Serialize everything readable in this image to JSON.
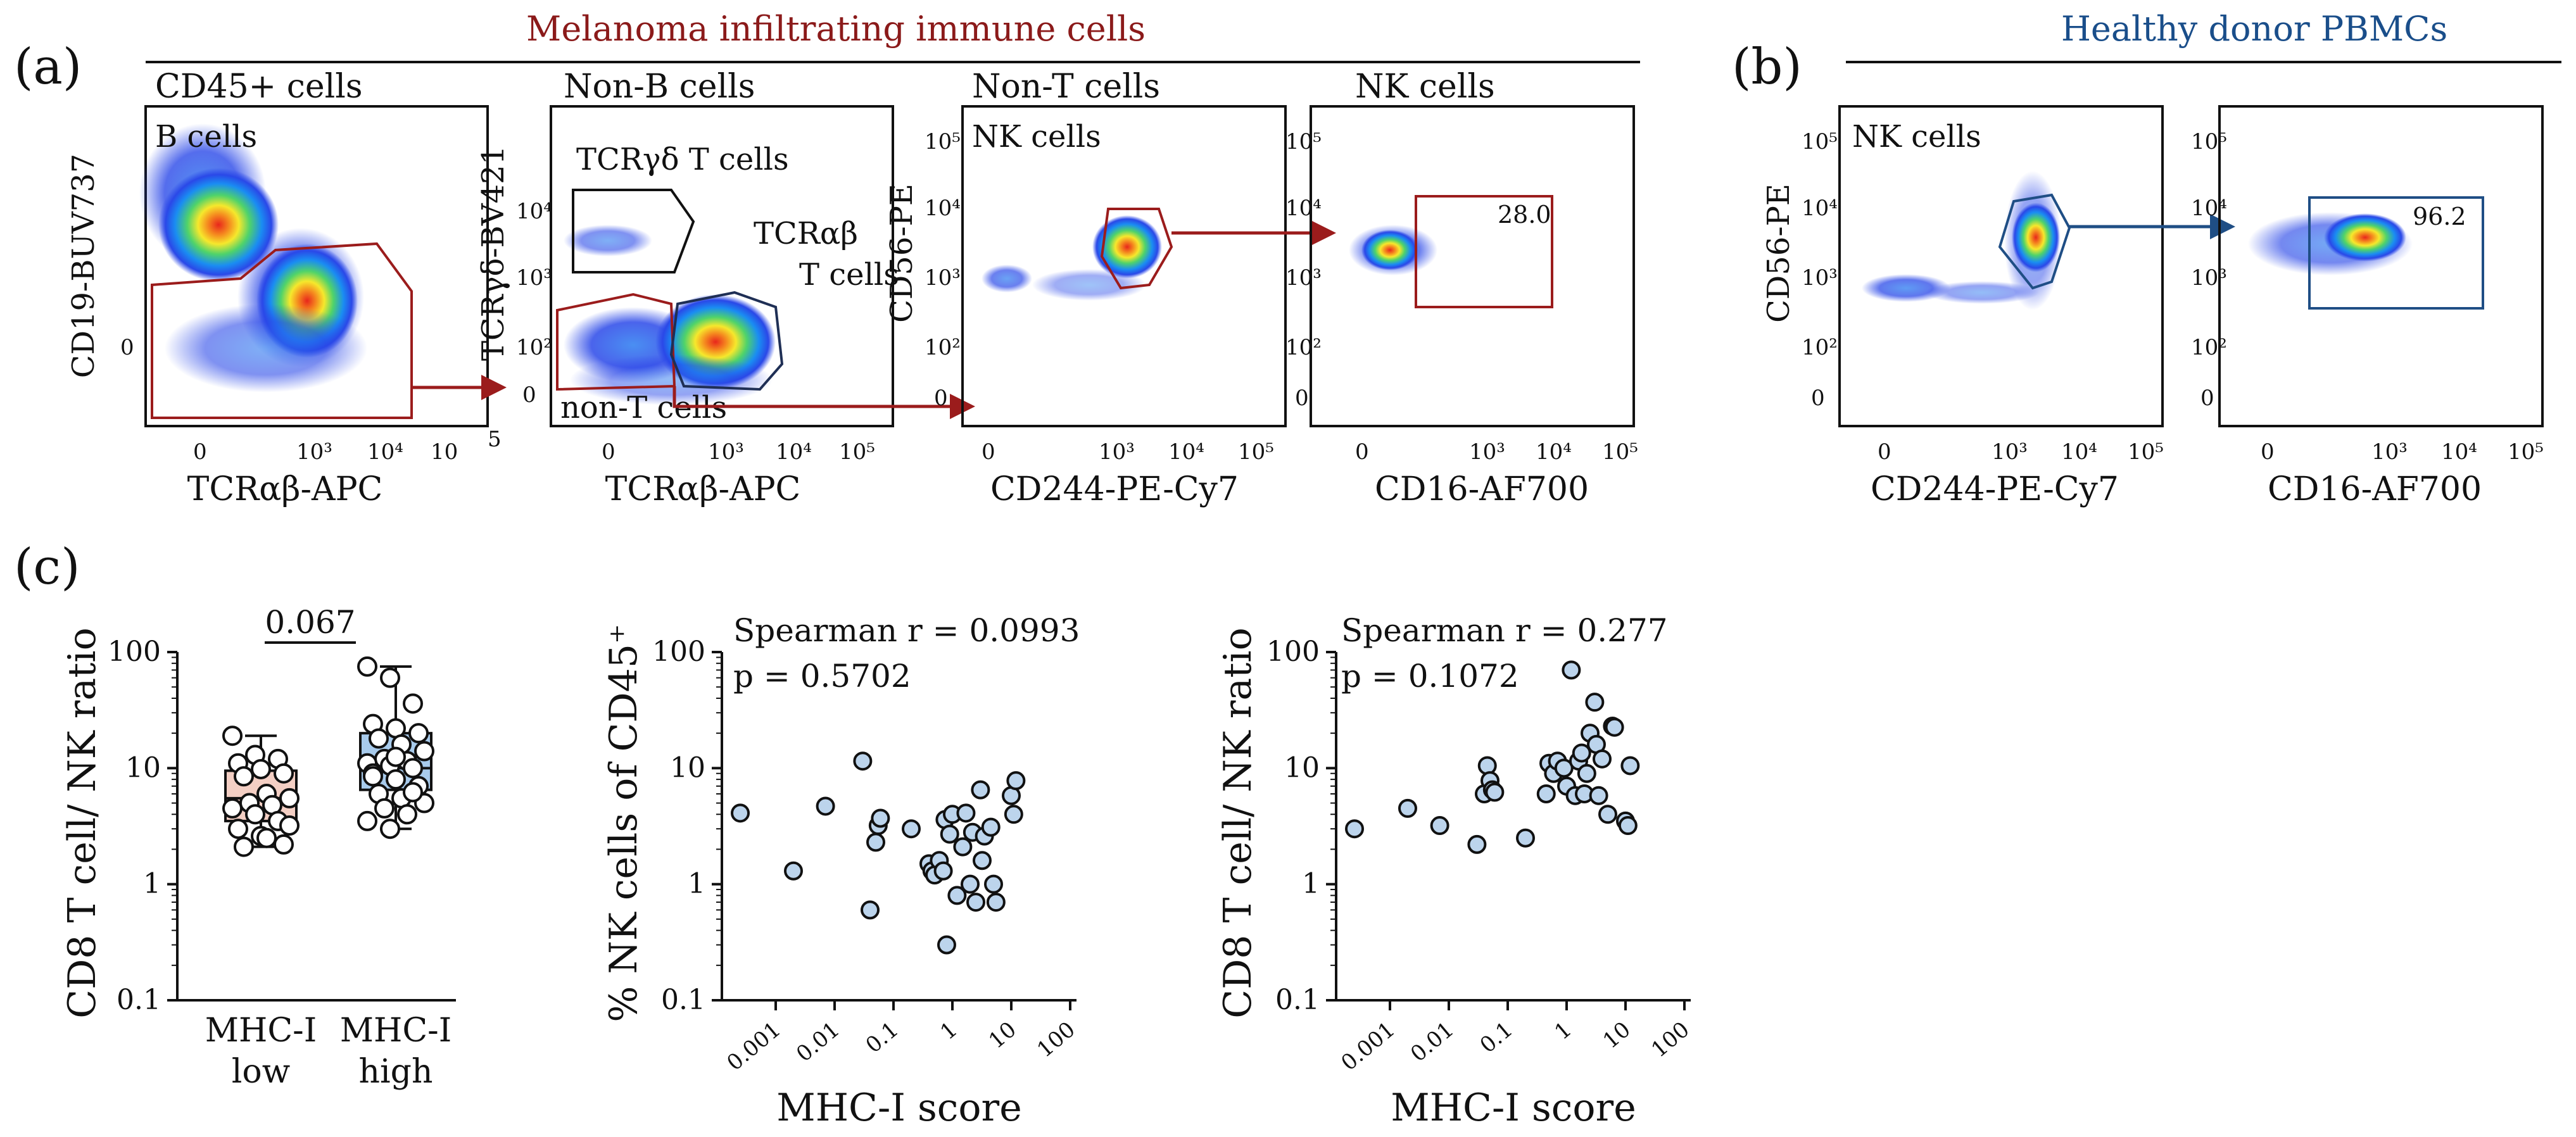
{
  "panel_labels": {
    "a": "(a)",
    "b": "(b)",
    "c": "(c)"
  },
  "titles": {
    "melanoma": "Melanoma infiltrating immune cells",
    "healthy": "Healthy donor PBMCs"
  },
  "colors": {
    "red_gate": "#9b1c1c",
    "blue_gate": "#1f4e85",
    "low_box": "#f4cfc4",
    "high_box": "#a8cbec",
    "dot": "#bcd4ec"
  },
  "flow": {
    "p1": {
      "header": "CD45+ cells",
      "ylabel": "CD19-BUV737",
      "xlabel": "TCRαβ-APC",
      "gate_label": "B cells",
      "xticks": [
        "0",
        "10³",
        "10⁴",
        "10",
        "5"
      ],
      "yticks": [
        "0"
      ]
    },
    "p2": {
      "header": "Non-B cells",
      "ylabel": "TCRγδ-BV421",
      "xlabel": "TCRαβ-APC",
      "gate_tcrgd": "TCRγδ T cells",
      "gate_tcrab_1": "TCRαβ",
      "gate_tcrab_2": "T cells",
      "gate_nont": "non-T cells",
      "xticks": [
        "0",
        "10³",
        "10⁴",
        "10⁵"
      ],
      "yticks": [
        "10⁴",
        "10³",
        "10²",
        "0"
      ]
    },
    "p3": {
      "header": "Non-T cells",
      "ylabel": "CD56-PE",
      "xlabel": "CD244-PE-Cy7",
      "gate_label": "NK cells",
      "xticks": [
        "0",
        "10³",
        "10⁴",
        "10⁵"
      ],
      "yticks": [
        "10⁵",
        "10⁴",
        "10³",
        "10²",
        "0"
      ]
    },
    "p4": {
      "header": "NK cells",
      "ylabel": "",
      "xlabel": "CD16-AF700",
      "value": "28.0",
      "xticks": [
        "0",
        "10³",
        "10⁴",
        "10⁵"
      ],
      "yticks": [
        "10⁵",
        "10⁴",
        "10³",
        "10²",
        "0"
      ]
    },
    "p5": {
      "header": "",
      "ylabel": "CD56-PE",
      "xlabel": "CD244-PE-Cy7",
      "gate_label": "NK cells",
      "xticks": [
        "0",
        "10³",
        "10⁴",
        "10⁵"
      ],
      "yticks": [
        "10⁵",
        "10⁴",
        "10³",
        "10²",
        "0"
      ]
    },
    "p6": {
      "header": "",
      "ylabel": "",
      "xlabel": "CD16-AF700",
      "value": "96.2",
      "xticks": [
        "0",
        "10³",
        "10⁴",
        "10⁵"
      ],
      "yticks": [
        "10⁵",
        "10⁴",
        "10³",
        "10²",
        "0"
      ]
    }
  },
  "chart_data": [
    {
      "type": "box",
      "title": "",
      "ylabel": "CD8 T cell/ NK ratio",
      "yscale": "log",
      "ylim": [
        0.1,
        100
      ],
      "yticks": [
        "100",
        "10",
        "1",
        "0.1"
      ],
      "categories": [
        [
          "MHC-I",
          "low"
        ],
        [
          "MHC-I",
          "high"
        ]
      ],
      "p_value": "0.067",
      "groups": [
        {
          "name": "MHC-I low",
          "min": 2.1,
          "q1": 3.5,
          "median": 5.5,
          "q3": 9.5,
          "max": 19,
          "points": [
            19,
            13,
            12,
            11,
            9.8,
            9,
            8.5,
            6,
            5.5,
            5,
            4.8,
            4.5,
            4,
            3.5,
            3,
            2.6,
            2.2,
            2.1,
            2.5,
            3.2
          ]
        },
        {
          "name": "MHC-I high",
          "min": 3,
          "q1": 6.5,
          "median": 10,
          "q3": 20,
          "max": 75,
          "points": [
            75,
            60,
            36,
            24,
            22,
            20,
            18,
            16,
            14,
            12,
            11.5,
            11,
            10.5,
            10,
            9,
            8,
            7,
            6,
            5.5,
            5,
            4.5,
            4,
            3.5,
            3,
            6.2,
            8.5,
            12.5
          ]
        }
      ]
    },
    {
      "type": "scatter",
      "xlabel": "MHC-I score",
      "ylabel": "% NK cells of CD45⁺",
      "xscale": "log",
      "yscale": "log",
      "xlim": [
        0.0002,
        100
      ],
      "ylim": [
        0.1,
        100
      ],
      "xticks": [
        "0.001",
        "0.01",
        "0.1",
        "1",
        "10",
        "100"
      ],
      "yticks": [
        "100",
        "10",
        "1",
        "0.1"
      ],
      "annotation_1": "Spearman r = 0.0993",
      "annotation_2": "p = 0.5702",
      "points": [
        [
          0.00025,
          4.1
        ],
        [
          0.002,
          1.3
        ],
        [
          0.007,
          4.7
        ],
        [
          0.03,
          11.5
        ],
        [
          0.04,
          0.6
        ],
        [
          0.05,
          2.3
        ],
        [
          0.055,
          3.2
        ],
        [
          0.06,
          3.7
        ],
        [
          0.2,
          3.0
        ],
        [
          0.4,
          1.5
        ],
        [
          0.45,
          1.3
        ],
        [
          0.5,
          1.2
        ],
        [
          0.6,
          1.6
        ],
        [
          0.7,
          1.3
        ],
        [
          0.75,
          3.6
        ],
        [
          0.8,
          0.3
        ],
        [
          0.9,
          2.7
        ],
        [
          1.0,
          4.0
        ],
        [
          1.2,
          0.8
        ],
        [
          1.5,
          2.1
        ],
        [
          1.7,
          4.1
        ],
        [
          2.0,
          1.0
        ],
        [
          2.2,
          2.8
        ],
        [
          2.5,
          0.7
        ],
        [
          3.0,
          6.5
        ],
        [
          3.2,
          1.6
        ],
        [
          3.5,
          2.6
        ],
        [
          4.5,
          3.1
        ],
        [
          5.0,
          1.0
        ],
        [
          5.5,
          0.7
        ],
        [
          10.0,
          5.8
        ],
        [
          11.0,
          4.0
        ],
        [
          12.0,
          7.8
        ]
      ]
    },
    {
      "type": "scatter",
      "xlabel": "MHC-I score",
      "ylabel": "CD8 T cell/ NK ratio",
      "xscale": "log",
      "yscale": "log",
      "xlim": [
        0.0002,
        100
      ],
      "ylim": [
        0.1,
        100
      ],
      "xticks": [
        "0.001",
        "0.01",
        "0.1",
        "1",
        "10",
        "100"
      ],
      "yticks": [
        "100",
        "10",
        "1",
        "0.1"
      ],
      "annotation_1": "Spearman r = 0.277",
      "annotation_2": "p = 0.1072",
      "points": [
        [
          0.00025,
          3.0
        ],
        [
          0.002,
          4.5
        ],
        [
          0.007,
          3.2
        ],
        [
          0.03,
          2.2
        ],
        [
          0.04,
          6.0
        ],
        [
          0.045,
          10.5
        ],
        [
          0.05,
          7.8
        ],
        [
          0.055,
          6.5
        ],
        [
          0.06,
          6.2
        ],
        [
          0.2,
          2.5
        ],
        [
          0.45,
          6.0
        ],
        [
          0.5,
          11.0
        ],
        [
          0.6,
          9.0
        ],
        [
          0.7,
          11.5
        ],
        [
          0.9,
          10.0
        ],
        [
          1.0,
          7.0
        ],
        [
          1.2,
          70.0
        ],
        [
          1.4,
          5.8
        ],
        [
          1.6,
          11.5
        ],
        [
          1.8,
          13.5
        ],
        [
          2.0,
          6.0
        ],
        [
          2.2,
          9.0
        ],
        [
          2.5,
          20.0
        ],
        [
          3.0,
          37.0
        ],
        [
          3.2,
          16.0
        ],
        [
          3.5,
          5.8
        ],
        [
          4.0,
          12.0
        ],
        [
          5.0,
          4.0
        ],
        [
          6.0,
          23.0
        ],
        [
          6.5,
          22.5
        ],
        [
          10.0,
          3.5
        ],
        [
          11.0,
          3.2
        ],
        [
          12.0,
          10.5
        ]
      ]
    }
  ]
}
